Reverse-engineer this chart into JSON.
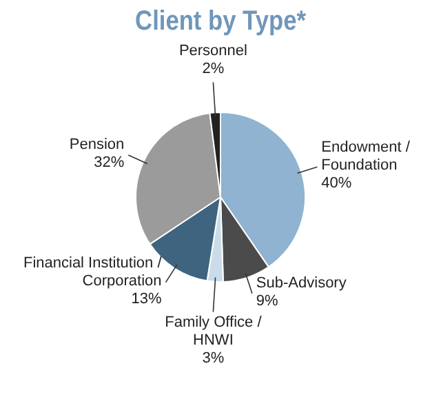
{
  "chart_data": {
    "type": "pie",
    "title": "Client by Type*",
    "categories": [
      "Endowment / Foundation",
      "Sub-Advisory",
      "Family Office / HNWI",
      "Financial Institution / Corporation",
      "Pension",
      "Personnel"
    ],
    "values": [
      40,
      9,
      3,
      13,
      32,
      2
    ],
    "value_labels": [
      "40%",
      "9%",
      "3%",
      "13%",
      "32%",
      "2%"
    ],
    "colors": [
      "#8fb3d0",
      "#4b4b4b",
      "#cadcea",
      "#3e6480",
      "#9b9b9b",
      "#222222"
    ]
  }
}
